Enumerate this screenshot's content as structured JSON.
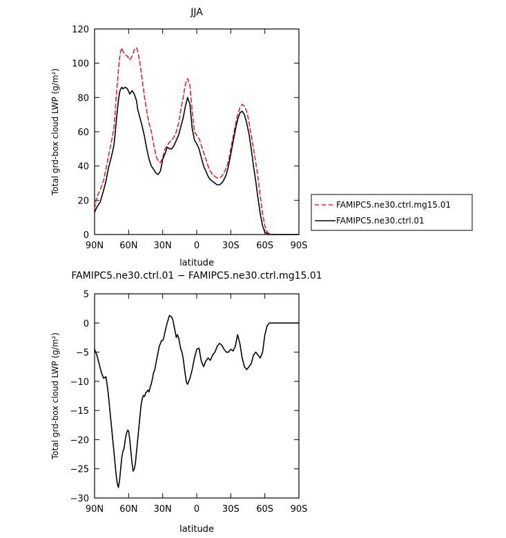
{
  "chart_data": [
    {
      "type": "line",
      "title": "JJA",
      "xlabel": "latitude",
      "ylabel": "Total grd-box cloud LWP (g/m²)",
      "x_tick_labels": [
        "90N",
        "60N",
        "30N",
        "0",
        "30S",
        "60S",
        "90S"
      ],
      "x_ticks": [
        90,
        60,
        30,
        0,
        -30,
        -60,
        -90
      ],
      "xlim": [
        90,
        -90
      ],
      "y_tick_labels": [
        "0",
        "20",
        "40",
        "60",
        "80",
        "100",
        "120"
      ],
      "y_ticks": [
        0,
        20,
        40,
        60,
        80,
        100,
        120
      ],
      "ylim": [
        0,
        120
      ],
      "legend_position": "right",
      "series": [
        {
          "name": "FAMIPC5.ne30.ctrl.mg15.01",
          "color": "#e8202a",
          "dash": "dashed",
          "x": [
            90,
            88,
            85,
            82,
            80,
            78,
            75,
            73,
            72,
            71,
            70,
            69,
            68,
            67,
            66,
            65,
            63,
            61,
            59,
            57,
            55,
            53,
            52,
            50,
            48,
            46,
            44,
            42,
            40,
            38,
            36,
            34,
            32,
            30,
            28,
            26,
            24,
            22,
            20,
            18,
            16,
            14,
            12,
            10,
            8,
            6,
            4,
            2,
            0,
            -2,
            -4,
            -6,
            -8,
            -10,
            -12,
            -14,
            -16,
            -18,
            -20,
            -22,
            -24,
            -26,
            -28,
            -30,
            -32,
            -34,
            -36,
            -38,
            -40,
            -42,
            -44,
            -46,
            -48,
            -50,
            -52,
            -54,
            -56,
            -58,
            -60,
            -62,
            -64,
            -66,
            -68,
            -70,
            -72,
            -75,
            -80,
            -85,
            -90
          ],
          "y": [
            15,
            22,
            26,
            32,
            38,
            45,
            55,
            62,
            70,
            80,
            88,
            96,
            103,
            107,
            109,
            107,
            105,
            104,
            102,
            104,
            108,
            109,
            107,
            100,
            90,
            80,
            72,
            65,
            60,
            53,
            46,
            43,
            42,
            45,
            50,
            52,
            54,
            55,
            57,
            60,
            65,
            73,
            80,
            88,
            91,
            87,
            72,
            60,
            58,
            56,
            52,
            48,
            44,
            40,
            37,
            35,
            34,
            33,
            33,
            34,
            36,
            39,
            43,
            50,
            57,
            64,
            70,
            74,
            76,
            75,
            72,
            66,
            58,
            50,
            42,
            33,
            22,
            12,
            5,
            1.5,
            0.5,
            0,
            0,
            0,
            0,
            0,
            0,
            0,
            0
          ]
        },
        {
          "name": "FAMIPC5.ne30.ctrl.01",
          "color": "#000000",
          "dash": "solid",
          "x": [
            90,
            88,
            85,
            82,
            80,
            78,
            75,
            73,
            72,
            71,
            70,
            69,
            68,
            67,
            66,
            65,
            63,
            61,
            59,
            57,
            55,
            53,
            52,
            50,
            48,
            46,
            44,
            42,
            40,
            38,
            36,
            34,
            32,
            30,
            28,
            26,
            24,
            22,
            20,
            18,
            16,
            14,
            12,
            10,
            8,
            6,
            4,
            2,
            0,
            -2,
            -4,
            -6,
            -8,
            -10,
            -12,
            -14,
            -16,
            -18,
            -20,
            -22,
            -24,
            -26,
            -28,
            -30,
            -32,
            -34,
            -36,
            -38,
            -40,
            -42,
            -44,
            -46,
            -48,
            -50,
            -52,
            -54,
            -56,
            -58,
            -60,
            -62,
            -64,
            -66,
            -68,
            -70,
            -72,
            -75,
            -80,
            -85,
            -90
          ],
          "y": [
            13,
            16,
            19,
            26,
            31,
            38,
            46,
            52,
            58,
            65,
            72,
            78,
            83,
            85,
            86,
            85,
            86,
            85,
            82,
            84,
            82,
            78,
            73,
            68,
            63,
            57,
            50,
            44,
            40,
            38,
            36,
            35,
            37,
            44,
            47,
            51,
            50,
            50,
            52,
            55,
            58,
            63,
            68,
            75,
            80,
            76,
            62,
            55,
            53,
            50,
            45,
            40,
            37,
            34,
            32,
            31,
            30,
            29,
            29,
            30,
            32,
            35,
            40,
            47,
            54,
            61,
            67,
            71,
            72,
            70,
            65,
            59,
            50,
            40,
            31,
            21,
            12,
            5,
            1.5,
            0.5,
            0,
            0,
            0,
            0,
            0,
            0,
            0,
            0,
            0
          ]
        }
      ]
    },
    {
      "type": "line",
      "title": "FAMIPC5.ne30.ctrl.01 − FAMIPC5.ne30.ctrl.mg15.01",
      "xlabel": "latitude",
      "ylabel": "Total grd-box cloud LWP (g/m²)",
      "x_tick_labels": [
        "90N",
        "60N",
        "30N",
        "0",
        "30S",
        "60S",
        "90S"
      ],
      "x_ticks": [
        90,
        60,
        30,
        0,
        -30,
        -60,
        -90
      ],
      "xlim": [
        90,
        -90
      ],
      "y_tick_labels": [
        "−30",
        "−25",
        "−20",
        "−15",
        "−10",
        "−5",
        "0",
        "5"
      ],
      "y_ticks": [
        -30,
        -25,
        -20,
        -15,
        -10,
        -5,
        0,
        5
      ],
      "ylim": [
        -30,
        5
      ],
      "series": [
        {
          "color": "#000000",
          "dash": "solid",
          "x": [
            90,
            88,
            86,
            84,
            82,
            80,
            79,
            78,
            77,
            76,
            75,
            74,
            73,
            72,
            71,
            70,
            69,
            68,
            67,
            66,
            65,
            64,
            63,
            62,
            61,
            60,
            59,
            58,
            57,
            56,
            55,
            54,
            53,
            52,
            51,
            50,
            49,
            48,
            47,
            46,
            45,
            44,
            43,
            42,
            41,
            40,
            39,
            38,
            37,
            36,
            35,
            34,
            33,
            32,
            31,
            30,
            29,
            28,
            26,
            24,
            22,
            21,
            20,
            19,
            18,
            17,
            16,
            15,
            14,
            13,
            12,
            11,
            10,
            9,
            8,
            6,
            4,
            2,
            0,
            -2,
            -4,
            -6,
            -8,
            -10,
            -12,
            -14,
            -16,
            -18,
            -20,
            -22,
            -24,
            -26,
            -28,
            -30,
            -32,
            -34,
            -36,
            -38,
            -40,
            -42,
            -44,
            -46,
            -48,
            -50,
            -52,
            -54,
            -56,
            -58,
            -60,
            -62,
            -64,
            -66,
            -68,
            -70,
            -72,
            -75,
            -80,
            -85,
            -90
          ],
          "y": [
            -4.5,
            -5.5,
            -7,
            -8.5,
            -9.5,
            -9.2,
            -10.5,
            -12,
            -14,
            -16,
            -18,
            -20,
            -22,
            -24,
            -26,
            -27.5,
            -28.2,
            -27,
            -25,
            -23,
            -22,
            -21.5,
            -20,
            -19,
            -18.4,
            -18.5,
            -20,
            -22,
            -24,
            -25.4,
            -25,
            -24,
            -22,
            -20,
            -18,
            -16,
            -14,
            -13,
            -12.4,
            -12.6,
            -12,
            -11.8,
            -11.5,
            -11.8,
            -11,
            -10.4,
            -9.5,
            -8.5,
            -8,
            -7,
            -6,
            -5,
            -4,
            -3.5,
            -3,
            -3,
            -2.5,
            -1.5,
            0,
            1.3,
            1,
            0.5,
            -0.5,
            -1.5,
            -2.5,
            -2,
            -2.5,
            -3.5,
            -4.5,
            -5,
            -6,
            -7.5,
            -9,
            -10.2,
            -10.5,
            -9.5,
            -8,
            -6,
            -4.5,
            -4.3,
            -6.5,
            -7.5,
            -6.5,
            -6,
            -6.4,
            -5.5,
            -5,
            -4,
            -3.5,
            -3.8,
            -4.5,
            -5,
            -5,
            -4.5,
            -4.8,
            -4,
            -2,
            -3.5,
            -6,
            -7.5,
            -8,
            -7.5,
            -7,
            -5.5,
            -5,
            -5.5,
            -6,
            -5,
            -2,
            -0.5,
            0,
            0,
            0,
            0,
            0,
            0,
            0,
            0,
            0
          ]
        }
      ]
    }
  ]
}
